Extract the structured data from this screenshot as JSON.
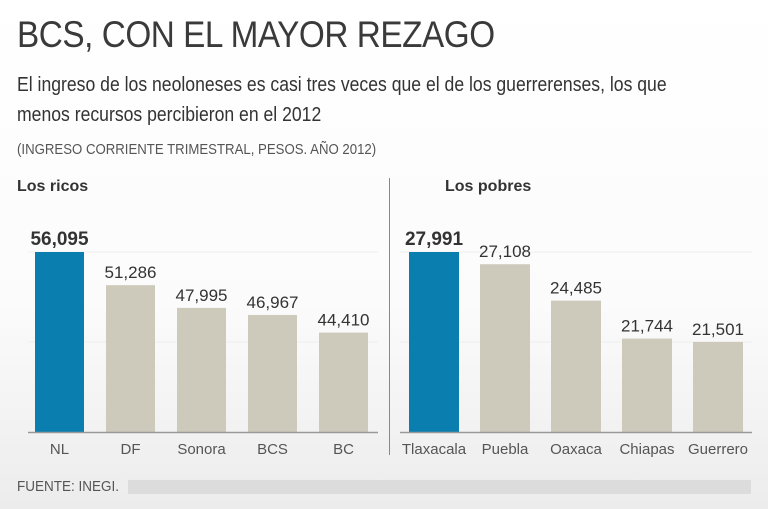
{
  "title": "BCS, CON EL MAYOR REZAGO",
  "subtitle": "El ingreso de los neoloneses es casi tres veces que el de los guerrerenses, los que menos recursos  percibieron en el 2012",
  "unit": "(INGRESO CORRIENTE TRIMESTRAL, PESOS. AÑO 2012)",
  "footer": "FUENTE: INEGI.",
  "colors": {
    "highlight": "#0b7eb0",
    "bar": "#cdcabb"
  },
  "chart_data": [
    {
      "type": "bar",
      "title": "Los ricos",
      "categories": [
        "NL",
        "DF",
        "Sonora",
        "BCS",
        "BC"
      ],
      "values": [
        56095,
        51286,
        47995,
        46967,
        44410
      ],
      "labels": [
        "56,095",
        "51,286",
        "47,995",
        "46,967",
        "44,410"
      ],
      "ylim": [
        30000,
        56095
      ],
      "highlight": 0
    },
    {
      "type": "bar",
      "title": "Los pobres",
      "categories": [
        "Tlaxacala",
        "Puebla",
        "Oaxaca",
        "Chiapas",
        "Guerrero"
      ],
      "values": [
        27991,
        27108,
        24485,
        21744,
        21501
      ],
      "labels": [
        "27,991",
        "27,108",
        "24,485",
        "21,744",
        "21,501"
      ],
      "ylim": [
        15000,
        27991
      ],
      "highlight": 0
    }
  ]
}
